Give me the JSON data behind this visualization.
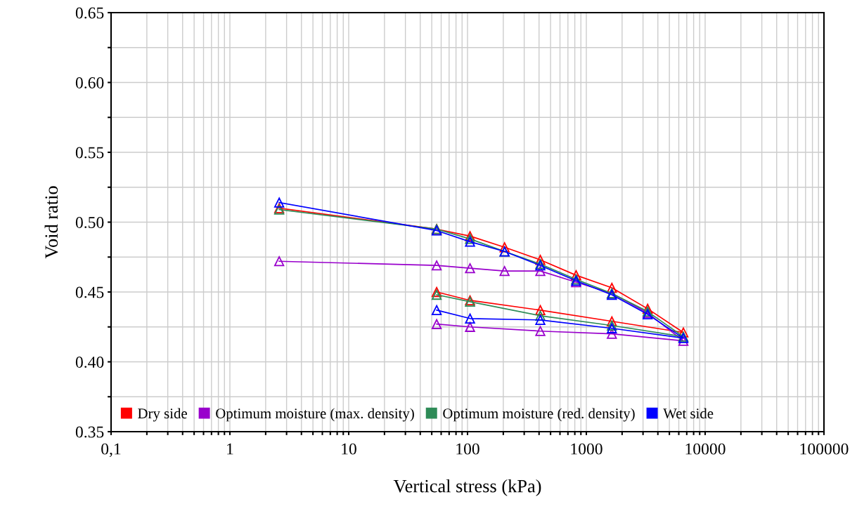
{
  "chart_data": {
    "type": "line",
    "xlabel": "Vertical stress (kPa)",
    "ylabel": "Void ratio",
    "log": "x",
    "grid": true,
    "legend": "bottom left",
    "marker": "triangle",
    "line_style": "solid",
    "xlim": [
      0.1,
      100000
    ],
    "ylim": [
      0.35,
      0.65
    ],
    "xticks": [
      {
        "value": 0.1,
        "label": "0,1"
      },
      {
        "value": 0.2,
        "label": null
      },
      {
        "value": 0.3,
        "label": null
      },
      {
        "value": 0.4,
        "label": null
      },
      {
        "value": 0.5,
        "label": null
      },
      {
        "value": 0.6,
        "label": null
      },
      {
        "value": 0.7,
        "label": null
      },
      {
        "value": 0.8,
        "label": null
      },
      {
        "value": 0.9,
        "label": null
      },
      1,
      {
        "value": 2,
        "label": null
      },
      {
        "value": 3,
        "label": null
      },
      {
        "value": 4,
        "label": null
      },
      {
        "value": 5,
        "label": null
      },
      {
        "value": 6,
        "label": null
      },
      {
        "value": 7,
        "label": null
      },
      {
        "value": 8,
        "label": null
      },
      {
        "value": 9,
        "label": null
      },
      10,
      {
        "value": 20,
        "label": null
      },
      {
        "value": 30,
        "label": null
      },
      {
        "value": 40,
        "label": null
      },
      {
        "value": 50,
        "label": null
      },
      {
        "value": 60,
        "label": null
      },
      {
        "value": 70,
        "label": null
      },
      {
        "value": 80,
        "label": null
      },
      {
        "value": 90,
        "label": null
      },
      100,
      {
        "value": 200,
        "label": null
      },
      {
        "value": 300,
        "label": null
      },
      {
        "value": 400,
        "label": null
      },
      {
        "value": 500,
        "label": null
      },
      {
        "value": 600,
        "label": null
      },
      {
        "value": 700,
        "label": null
      },
      {
        "value": 800,
        "label": null
      },
      {
        "value": 900,
        "label": null
      },
      1000,
      {
        "value": 2000,
        "label": null
      },
      {
        "value": 3000,
        "label": null
      },
      {
        "value": 4000,
        "label": null
      },
      {
        "value": 5000,
        "label": null
      },
      {
        "value": 6000,
        "label": null
      },
      {
        "value": 7000,
        "label": null
      },
      {
        "value": 8000,
        "label": null
      },
      {
        "value": 9000,
        "label": null
      },
      10000,
      {
        "value": 20000,
        "label": null
      },
      {
        "value": 30000,
        "label": null
      },
      {
        "value": 40000,
        "label": null
      },
      {
        "value": 50000,
        "label": null
      },
      {
        "value": 60000,
        "label": null
      },
      {
        "value": 70000,
        "label": null
      },
      {
        "value": 80000,
        "label": null
      },
      {
        "value": 90000,
        "label": null
      },
      100000
    ],
    "yticks": [
      {
        "value": 0.35,
        "label": "0.35"
      },
      {
        "value": 0.375,
        "label": null
      },
      {
        "value": 0.4,
        "label": "0.40"
      },
      {
        "value": 0.425,
        "label": null
      },
      {
        "value": 0.45,
        "label": "0.45"
      },
      {
        "value": 0.475,
        "label": null
      },
      {
        "value": 0.5,
        "label": "0.50"
      },
      {
        "value": 0.525,
        "label": null
      },
      {
        "value": 0.55,
        "label": "0.55"
      },
      {
        "value": 0.575,
        "label": null
      },
      {
        "value": 0.6,
        "label": "0.60"
      },
      {
        "value": 0.625,
        "label": null
      },
      {
        "value": 0.65,
        "label": "0.65"
      }
    ],
    "x": [
      2.6,
      55,
      105,
      205,
      410,
      820,
      1640,
      3280,
      6560,
      1640,
      410,
      105,
      55
    ],
    "series": [
      {
        "name": "Dry side",
        "color": "#ff0000",
        "values": [
          0.51,
          0.495,
          0.49,
          0.482,
          0.473,
          0.462,
          0.453,
          0.438,
          0.421,
          0.429,
          0.437,
          0.444,
          0.45
        ]
      },
      {
        "name": "Optimum moisture (max. density)",
        "color": "#9900cc",
        "values": [
          0.472,
          0.469,
          0.467,
          0.465,
          0.465,
          0.457,
          0.449,
          0.435,
          0.415,
          0.42,
          0.422,
          0.425,
          0.427
        ]
      },
      {
        "name": "Optimum moisture (red. density)",
        "color": "#2e8b57",
        "values": [
          0.509,
          0.495,
          0.488,
          0.479,
          0.47,
          0.459,
          0.449,
          0.436,
          0.418,
          0.426,
          0.433,
          0.443,
          0.448
        ]
      },
      {
        "name": "Wet side",
        "color": "#0000ff",
        "values": [
          0.514,
          0.494,
          0.486,
          0.479,
          0.469,
          0.458,
          0.448,
          0.434,
          0.417,
          0.424,
          0.43,
          0.431,
          0.437
        ]
      }
    ]
  }
}
